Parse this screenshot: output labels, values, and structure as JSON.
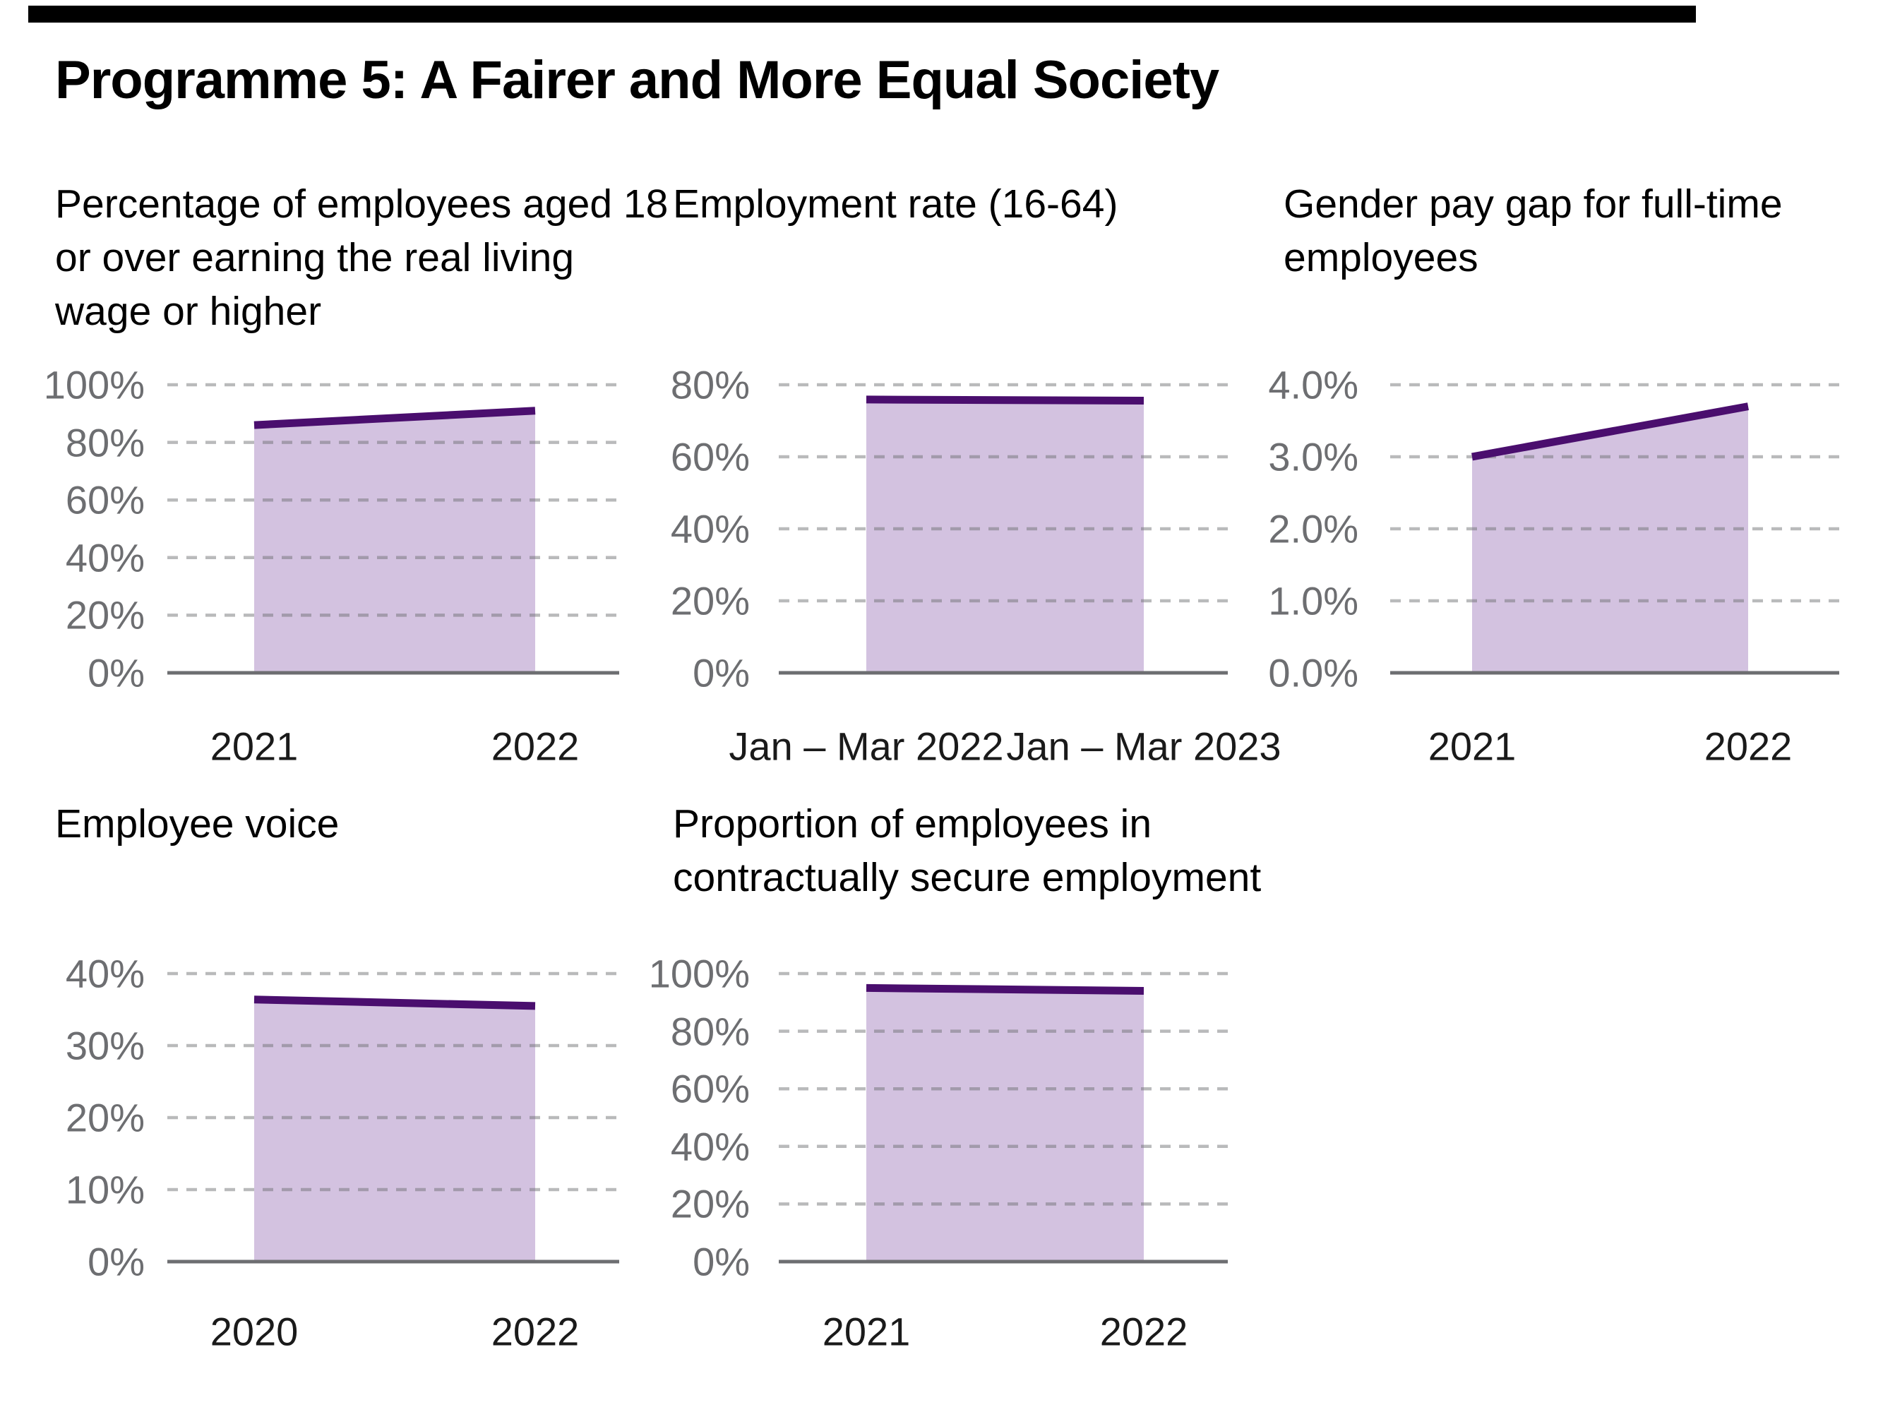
{
  "page": {
    "title": "Programme 5: A Fairer and More Equal Society",
    "top_bar_color": "#000000",
    "background_color": "#ffffff"
  },
  "colors": {
    "trend_line": "#4a0e6e",
    "area_fill": "#d3c2e0",
    "gridline": "#6d6e71",
    "axis_line": "#6d6e71",
    "y_label_text": "#6d6e71",
    "x_label_text": "#1a1a1a",
    "title_text": "#000000"
  },
  "chart_data": {
    "type": "area",
    "grid": "dashed horizontal gridlines, solid baseline axis, no legend",
    "charts": [
      {
        "title": "Percentage of employees aged 18\nor over earning the real living\nwage or higher",
        "x_categories": [
          "2021",
          "2022"
        ],
        "values": [
          86,
          91
        ],
        "y_max": 100,
        "y_tick_values": [
          100,
          80,
          60,
          40,
          20,
          0
        ],
        "y_tick_labels": [
          "100%",
          "80%",
          "60%",
          "40%",
          "20%",
          "0%"
        ]
      },
      {
        "title": "Employment rate (16-64)",
        "x_categories": [
          "Jan – Mar 2022",
          "Jan – Mar 2023"
        ],
        "values": [
          75.9,
          75.6
        ],
        "y_max": 80,
        "y_tick_values": [
          80,
          60,
          40,
          20,
          0
        ],
        "y_tick_labels": [
          "80%",
          "60%",
          "40%",
          "20%",
          "0%"
        ]
      },
      {
        "title": "Gender pay gap for full-time\nemployees",
        "x_categories": [
          "2021",
          "2022"
        ],
        "values": [
          3.0,
          3.7
        ],
        "y_max": 4,
        "y_tick_values": [
          4,
          3,
          2,
          1,
          0
        ],
        "y_tick_labels": [
          "4.0%",
          "3.0%",
          "2.0%",
          "1.0%",
          "0.0%"
        ]
      },
      {
        "title": "Employee voice",
        "x_categories": [
          "2020",
          "2022"
        ],
        "values": [
          36.4,
          35.5
        ],
        "y_max": 40,
        "y_tick_values": [
          40,
          30,
          20,
          10,
          0
        ],
        "y_tick_labels": [
          "40%",
          "30%",
          "20%",
          "10%",
          "0%"
        ]
      },
      {
        "title": "Proportion of employees in\ncontractually secure employment",
        "x_categories": [
          "2021",
          "2022"
        ],
        "values": [
          95,
          94
        ],
        "y_max": 100,
        "y_tick_values": [
          100,
          80,
          60,
          40,
          20,
          0
        ],
        "y_tick_labels": [
          "100%",
          "80%",
          "60%",
          "40%",
          "20%",
          "0%"
        ]
      }
    ]
  }
}
